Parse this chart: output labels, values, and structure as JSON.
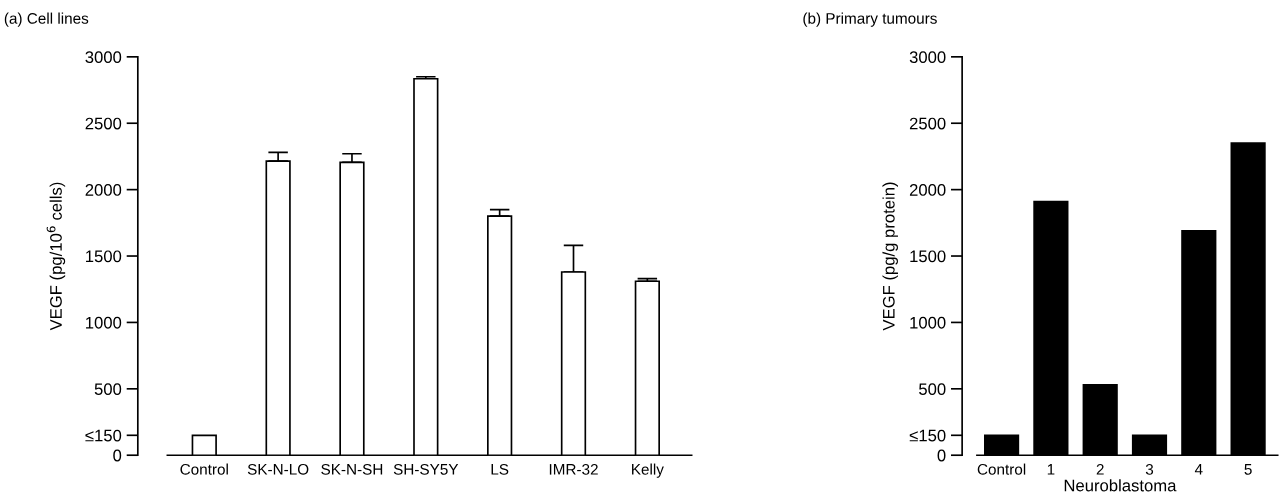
{
  "chart_data": [
    {
      "type": "bar",
      "title": "(a) Cell lines",
      "ylabel": "VEGF (pg/10$^{6}$ cells)",
      "categories": [
        "Control",
        "SK-N-LO",
        "SK-N-SH",
        "SH-SY5Y",
        "LS",
        "IMR-32",
        "Kelly"
      ],
      "values": [
        150,
        2215,
        2205,
        2835,
        1800,
        1380,
        1310
      ],
      "errors": [
        null,
        [
          2215,
          2280
        ],
        [
          2205,
          2270
        ],
        [
          2835,
          2850
        ],
        [
          1800,
          1850
        ],
        [
          1380,
          1580
        ],
        [
          1310,
          1330
        ]
      ],
      "color": "#ffffff",
      "ylim": [
        0,
        3000
      ],
      "yticks": [
        0,
        {
          "value": 150,
          "label": "≤150"
        },
        500,
        1000,
        1500,
        2000,
        2500,
        3000
      ]
    },
    {
      "type": "bar",
      "title": "(b) Primary tumours",
      "ylabel": "VEGF (pg/g protein)",
      "xlabel": "Neuroblastoma",
      "categories": [
        "Control",
        "1",
        "2",
        "3",
        "4",
        "5"
      ],
      "values": [
        150,
        1910,
        530,
        150,
        1690,
        2350
      ],
      "color": "#000000",
      "ylim": [
        0,
        3000
      ],
      "yticks": [
        0,
        {
          "value": 150,
          "label": "≤150"
        },
        500,
        1000,
        1500,
        2000,
        2500,
        3000
      ]
    }
  ]
}
